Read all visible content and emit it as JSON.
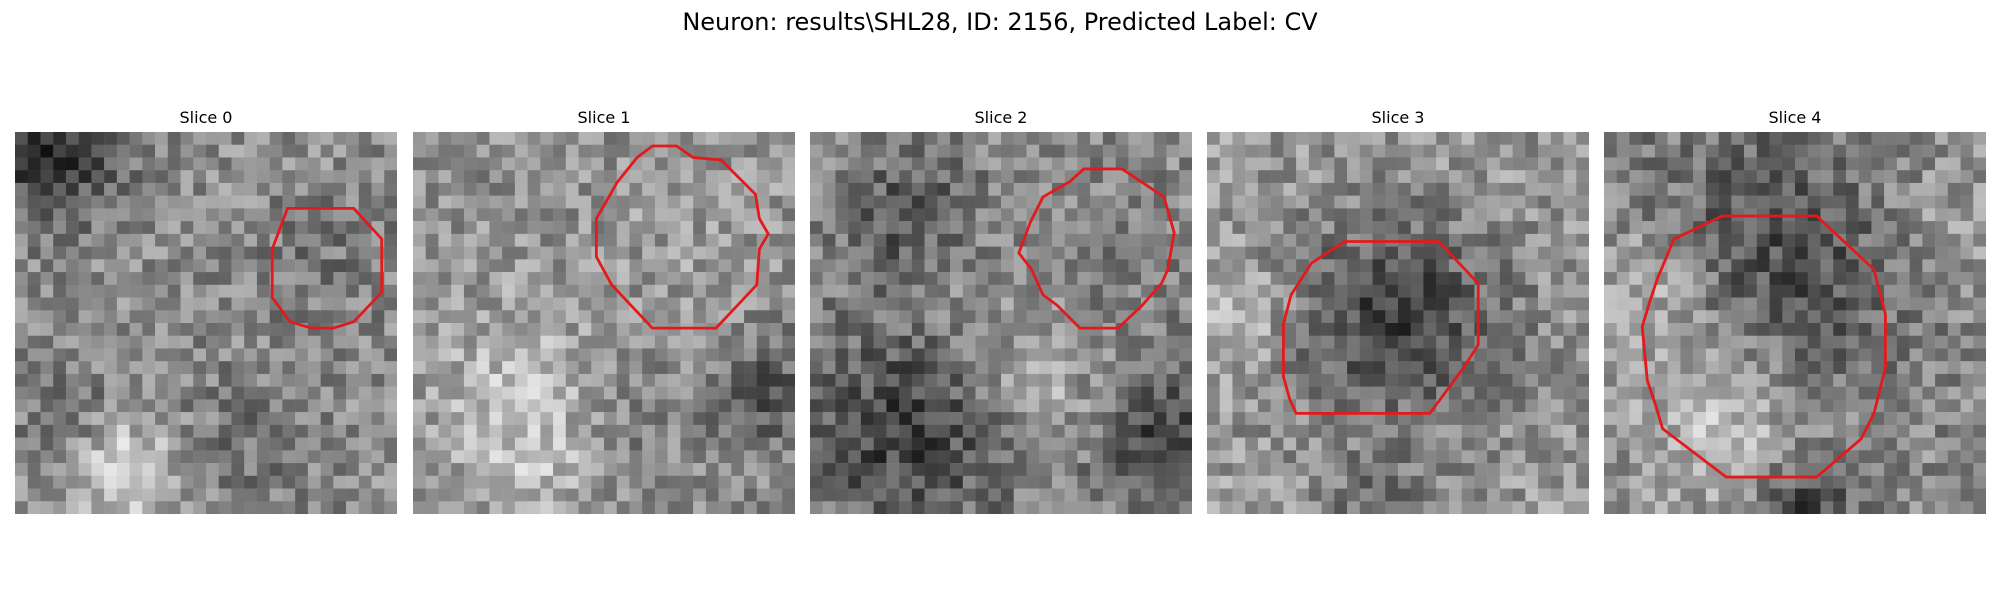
{
  "figure": {
    "title": "Neuron: results\\SHL28, ID: 2156, Predicted Label: CV"
  },
  "panels": [
    {
      "title": "Slice 0",
      "image": "grayscale-microscopy-slice-0",
      "roi_outline_color": "#e31a1c"
    },
    {
      "title": "Slice 1",
      "image": "grayscale-microscopy-slice-1",
      "roi_outline_color": "#e31a1c"
    },
    {
      "title": "Slice 2",
      "image": "grayscale-microscopy-slice-2",
      "roi_outline_color": "#e31a1c"
    },
    {
      "title": "Slice 3",
      "image": "grayscale-microscopy-slice-3",
      "roi_outline_color": "#e31a1c"
    },
    {
      "title": "Slice 4",
      "image": "grayscale-microscopy-slice-4",
      "roi_outline_color": "#e31a1c"
    }
  ]
}
